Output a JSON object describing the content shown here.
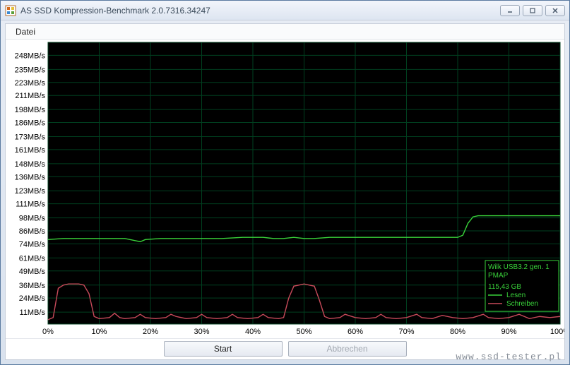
{
  "window": {
    "title": "AS SSD Kompression-Benchmark 2.0.7316.34247"
  },
  "menu": {
    "file": "Datei"
  },
  "chart": {
    "type": "line",
    "background_color": "#000000",
    "grid_color": "#003f1f",
    "axis_label_color": "#000000",
    "axis_label_fontsize": 11,
    "y_unit": "MB/s",
    "ylim": [
      0,
      260
    ],
    "y_ticks": [
      11,
      24,
      36,
      49,
      61,
      74,
      86,
      98,
      111,
      123,
      136,
      148,
      161,
      173,
      186,
      198,
      211,
      223,
      235,
      248
    ],
    "x_unit": "%",
    "xlim": [
      0,
      100
    ],
    "x_ticks": [
      0,
      10,
      20,
      30,
      40,
      50,
      60,
      70,
      80,
      90,
      100
    ],
    "series": [
      {
        "name": "Lesen",
        "color": "#39d23a",
        "line_width": 1.4,
        "points": [
          [
            0,
            78
          ],
          [
            3,
            79
          ],
          [
            6,
            79
          ],
          [
            9,
            79
          ],
          [
            12,
            79
          ],
          [
            15,
            79
          ],
          [
            17,
            77
          ],
          [
            18,
            76
          ],
          [
            19,
            78
          ],
          [
            22,
            79
          ],
          [
            26,
            79
          ],
          [
            30,
            79
          ],
          [
            34,
            79
          ],
          [
            38,
            80
          ],
          [
            42,
            80
          ],
          [
            44,
            79
          ],
          [
            46,
            79
          ],
          [
            48,
            80
          ],
          [
            50,
            79
          ],
          [
            52,
            79
          ],
          [
            55,
            80
          ],
          [
            58,
            80
          ],
          [
            61,
            80
          ],
          [
            65,
            80
          ],
          [
            70,
            80
          ],
          [
            74,
            80
          ],
          [
            78,
            80
          ],
          [
            80,
            80
          ],
          [
            81,
            82
          ],
          [
            82,
            93
          ],
          [
            83,
            99
          ],
          [
            84,
            100
          ],
          [
            85,
            100
          ],
          [
            88,
            100
          ],
          [
            92,
            100
          ],
          [
            96,
            100
          ],
          [
            100,
            100
          ]
        ]
      },
      {
        "name": "Schreiben",
        "color": "#c84a5a",
        "line_width": 1.4,
        "points": [
          [
            0,
            4
          ],
          [
            1,
            6
          ],
          [
            2,
            33
          ],
          [
            3,
            36
          ],
          [
            4,
            37
          ],
          [
            5,
            37
          ],
          [
            6,
            37
          ],
          [
            7,
            36
          ],
          [
            8,
            28
          ],
          [
            9,
            7
          ],
          [
            10,
            5
          ],
          [
            12,
            6
          ],
          [
            13,
            10
          ],
          [
            14,
            6
          ],
          [
            15,
            5
          ],
          [
            17,
            6
          ],
          [
            18,
            9
          ],
          [
            19,
            6
          ],
          [
            21,
            5
          ],
          [
            23,
            6
          ],
          [
            24,
            9
          ],
          [
            25,
            7
          ],
          [
            27,
            5
          ],
          [
            29,
            6
          ],
          [
            30,
            9
          ],
          [
            31,
            6
          ],
          [
            33,
            5
          ],
          [
            35,
            6
          ],
          [
            36,
            9
          ],
          [
            37,
            6
          ],
          [
            39,
            5
          ],
          [
            41,
            6
          ],
          [
            42,
            9
          ],
          [
            43,
            6
          ],
          [
            45,
            5
          ],
          [
            46,
            6
          ],
          [
            47,
            24
          ],
          [
            48,
            35
          ],
          [
            49,
            36
          ],
          [
            50,
            37
          ],
          [
            51,
            36
          ],
          [
            52,
            35
          ],
          [
            53,
            22
          ],
          [
            54,
            7
          ],
          [
            55,
            5
          ],
          [
            57,
            6
          ],
          [
            58,
            9
          ],
          [
            60,
            6
          ],
          [
            62,
            5
          ],
          [
            64,
            6
          ],
          [
            65,
            9
          ],
          [
            66,
            6
          ],
          [
            68,
            5
          ],
          [
            70,
            6
          ],
          [
            72,
            9
          ],
          [
            73,
            6
          ],
          [
            75,
            5
          ],
          [
            77,
            8
          ],
          [
            79,
            6
          ],
          [
            81,
            5
          ],
          [
            83,
            6
          ],
          [
            85,
            9
          ],
          [
            86,
            6
          ],
          [
            88,
            5
          ],
          [
            90,
            6
          ],
          [
            92,
            9
          ],
          [
            94,
            5
          ],
          [
            96,
            7
          ],
          [
            98,
            6
          ],
          [
            100,
            7
          ]
        ]
      }
    ],
    "legend": {
      "box_border_color": "#39d23a",
      "box_bg_color": "#000000",
      "text_color": "#39d23a",
      "device_line1": "Wilk USB3.2 gen. 1",
      "device_line2": "PMAP",
      "capacity": "115,43 GB",
      "items": [
        {
          "label": "Lesen",
          "color": "#39d23a"
        },
        {
          "label": "Schreiben",
          "color": "#c84a5a"
        }
      ]
    }
  },
  "buttons": {
    "start": "Start",
    "abort": "Abbrechen"
  },
  "watermark": "www.ssd-tester.pl"
}
